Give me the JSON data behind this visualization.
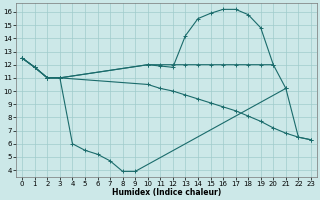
{
  "xlabel": "Humidex (Indice chaleur)",
  "xlim": [
    -0.5,
    23.5
  ],
  "ylim": [
    3.5,
    16.7
  ],
  "xticks": [
    0,
    1,
    2,
    3,
    4,
    5,
    6,
    7,
    8,
    9,
    10,
    11,
    12,
    13,
    14,
    15,
    16,
    17,
    18,
    19,
    20,
    21,
    22,
    23
  ],
  "yticks": [
    4,
    5,
    6,
    7,
    8,
    9,
    10,
    11,
    12,
    13,
    14,
    15,
    16
  ],
  "bg_color": "#cce8e8",
  "line_color": "#1a6b6b",
  "grid_color": "#a0cccc",
  "lines": [
    {
      "x": [
        0,
        1,
        2,
        3,
        10,
        11,
        12,
        13,
        14,
        15,
        16,
        17,
        18,
        19,
        20
      ],
      "y": [
        12.5,
        11.8,
        11.0,
        11.0,
        12.0,
        11.9,
        11.8,
        14.2,
        15.5,
        15.9,
        16.2,
        16.2,
        15.8,
        14.8,
        12.0
      ]
    },
    {
      "x": [
        0,
        1,
        2,
        3,
        10,
        11,
        12,
        13,
        14,
        15,
        16,
        17,
        18,
        19,
        20,
        21
      ],
      "y": [
        12.5,
        11.8,
        11.0,
        11.0,
        12.0,
        12.0,
        12.0,
        12.0,
        12.0,
        12.0,
        12.0,
        12.0,
        12.0,
        12.0,
        12.0,
        10.2
      ]
    },
    {
      "x": [
        0,
        1,
        2,
        3,
        4,
        5,
        6,
        7,
        8,
        9,
        21,
        22,
        23
      ],
      "y": [
        12.5,
        11.8,
        11.0,
        11.0,
        6.0,
        5.5,
        5.2,
        4.7,
        3.9,
        3.9,
        10.2,
        6.5,
        6.3
      ]
    },
    {
      "x": [
        0,
        1,
        2,
        3,
        10,
        11,
        12,
        13,
        14,
        15,
        16,
        17,
        18,
        19,
        20,
        21,
        22,
        23
      ],
      "y": [
        12.5,
        11.8,
        11.0,
        11.0,
        10.5,
        10.2,
        10.0,
        9.7,
        9.4,
        9.1,
        8.8,
        8.5,
        8.1,
        7.7,
        7.2,
        6.8,
        6.5,
        6.3
      ]
    }
  ]
}
